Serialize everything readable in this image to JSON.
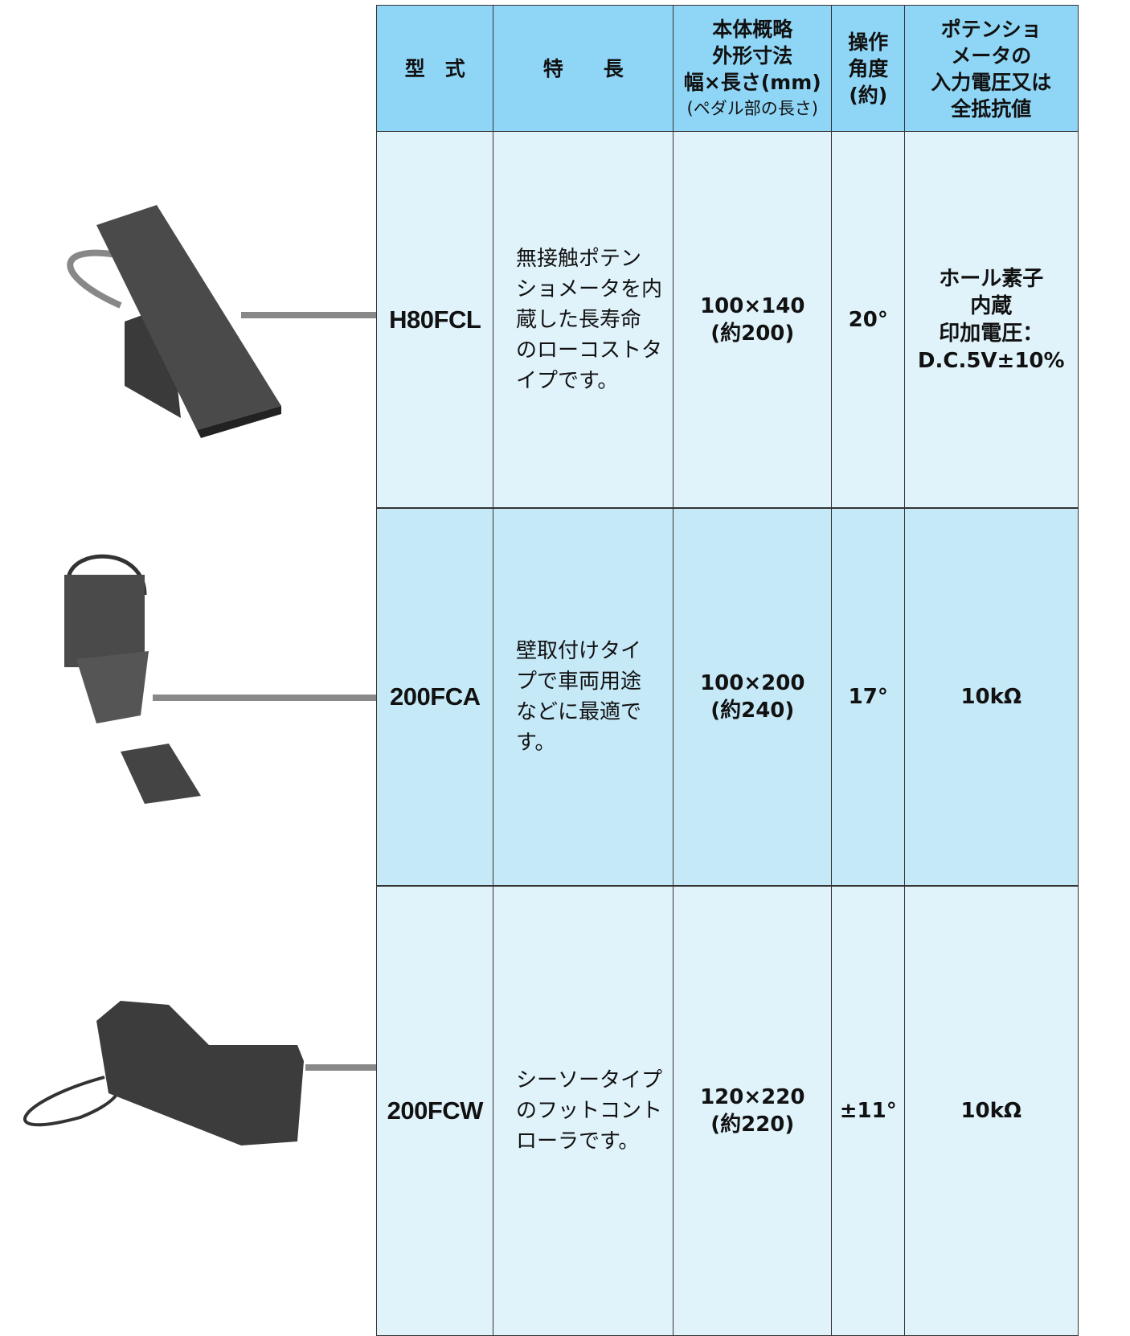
{
  "header": {
    "cells": [
      [
        "型　式"
      ],
      [
        "特　　長"
      ],
      [
        "本体概略",
        "外形寸法",
        "幅×長さ(mm)",
        "(ペダル部の長さ)"
      ],
      [
        "操作",
        "角度",
        "(約)"
      ],
      [
        "ポテンショ",
        "メータの",
        "入力電圧又は",
        "全抵抗値"
      ]
    ]
  },
  "rows": [
    {
      "model": "H80FCL",
      "features": [
        "無接触ポテン",
        "ショメータを内",
        "蔵した長寿命",
        "のローコストタ",
        "イプです。"
      ],
      "dimensions": [
        "100×140",
        "(約200)"
      ],
      "angle": "20°",
      "potentiometer": [
        "ホール素子",
        "内蔵",
        "印加電圧：",
        "D.C.5V±10%"
      ]
    },
    {
      "model": "200FCA",
      "features": [
        "壁取付けタイ",
        "プで車両用途",
        "などに最適で",
        "す。"
      ],
      "dimensions": [
        "100×200",
        "(約240)"
      ],
      "angle": "17°",
      "potentiometer": [
        "10kΩ"
      ]
    },
    {
      "model": "200FCW",
      "features": [
        "シーソータイプ",
        "のフットコント",
        "ローラです。"
      ],
      "dimensions": [
        "120×220",
        "(約220)"
      ],
      "angle": "±11°",
      "potentiometer": [
        "10kΩ"
      ]
    }
  ]
}
